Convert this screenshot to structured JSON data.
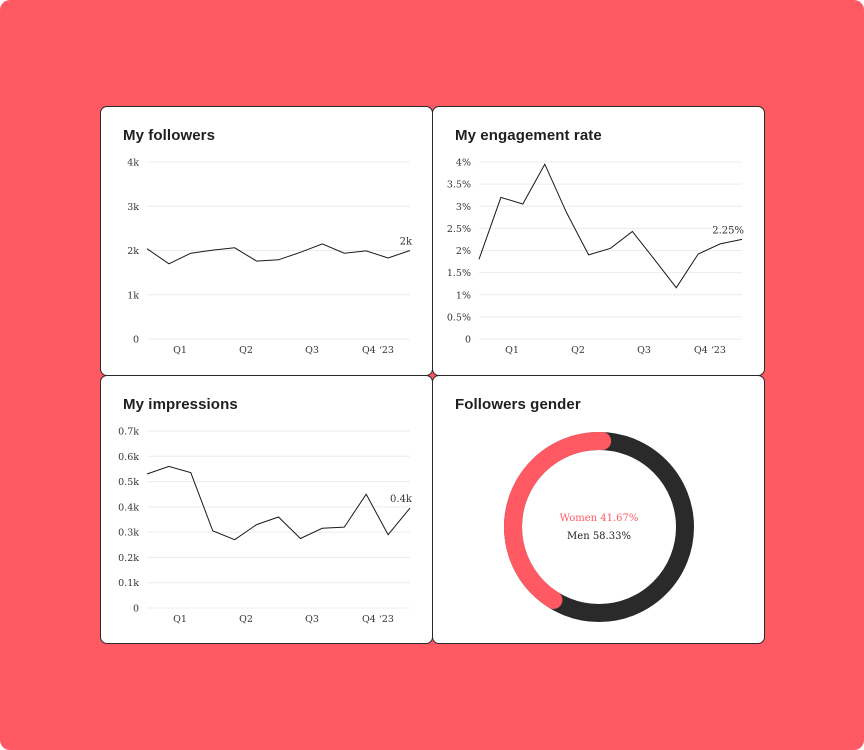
{
  "colors": {
    "background": "#ff5a64",
    "card": "#ffffff",
    "women": "#ff5a64",
    "men": "#2a2a2a",
    "line": "#1a1a1a"
  },
  "cards": {
    "followers": {
      "title": "My followers"
    },
    "engagement": {
      "title": "My engagement rate"
    },
    "impressions": {
      "title": "My impressions"
    },
    "gender": {
      "title": "Followers gender"
    }
  },
  "chart_data": [
    {
      "type": "line",
      "title": "My followers",
      "x_ticks": [
        "Q1",
        "Q2",
        "Q3",
        "Q4 ‘23"
      ],
      "y_ticks": [
        "0",
        "1k",
        "2k",
        "3k",
        "4k"
      ],
      "ylim": [
        0,
        4000
      ],
      "values": [
        2040,
        1700,
        1940,
        2010,
        2060,
        1760,
        1790,
        1960,
        2150,
        1940,
        1990,
        1830,
        2000
      ],
      "end_label": "2k",
      "grid": true
    },
    {
      "type": "line",
      "title": "My engagement rate",
      "x_ticks": [
        "Q1",
        "Q2",
        "Q3",
        "Q4 ‘23"
      ],
      "y_ticks": [
        "0",
        "0.5%",
        "1%",
        "1.5%",
        "2%",
        "2.5%",
        "3%",
        "3.5%",
        "4%"
      ],
      "ylim": [
        0,
        4
      ],
      "values": [
        1.8,
        3.2,
        3.05,
        3.95,
        2.85,
        1.9,
        2.05,
        2.43,
        1.8,
        1.16,
        1.92,
        2.15,
        2.25
      ],
      "end_label": "2.25%",
      "grid": true
    },
    {
      "type": "line",
      "title": "My impressions",
      "x_ticks": [
        "Q1",
        "Q2",
        "Q3",
        "Q4 ‘23"
      ],
      "y_ticks": [
        "0",
        "0.1k",
        "0.2k",
        "0.3k",
        "0.4k",
        "0.5k",
        "0.6k",
        "0.7k"
      ],
      "ylim": [
        0,
        700
      ],
      "values": [
        530,
        560,
        535,
        305,
        270,
        330,
        360,
        275,
        315,
        320,
        450,
        290,
        395
      ],
      "end_label": "0.4k",
      "grid": true
    },
    {
      "type": "pie",
      "title": "Followers gender",
      "categories": [
        "Women",
        "Men"
      ],
      "values": [
        41.67,
        58.33
      ],
      "labels": [
        "Women 41.67%",
        "Men 58.33%"
      ]
    }
  ]
}
